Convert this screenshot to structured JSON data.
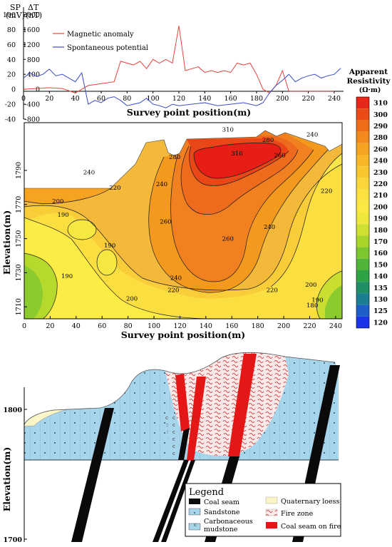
{
  "chart_data": [
    {
      "type": "line",
      "axes": {
        "x": {
          "label": "Survey point position(m)",
          "ticks": [
            0,
            20,
            40,
            60,
            80,
            100,
            120,
            140,
            160,
            180,
            200,
            220,
            240
          ],
          "range": [
            0,
            245
          ]
        },
        "y_left": {
          "unit_label": "SP",
          "unit": "(mV)",
          "ticks": [
            -40,
            -20,
            0,
            20,
            40,
            60,
            80,
            100
          ],
          "range": [
            -40,
            110
          ]
        },
        "y_right": {
          "unit_label": "ΔT",
          "unit": "(nT)",
          "ticks": [
            -800,
            -400,
            0,
            400,
            800,
            1200,
            1600,
            2000
          ],
          "range": [
            -800,
            2200
          ]
        }
      },
      "series": [
        {
          "name": "Magnetic anomaly",
          "axis": "y_right",
          "color": "#e8413c",
          "x": [
            0,
            10,
            20,
            30,
            40,
            50,
            60,
            70,
            75,
            80,
            85,
            90,
            95,
            100,
            105,
            110,
            115,
            120,
            125,
            130,
            135,
            140,
            145,
            150,
            155,
            160,
            165,
            170,
            175,
            180,
            185,
            190,
            195,
            200,
            205,
            210,
            220,
            230,
            240
          ],
          "y": [
            0,
            20,
            40,
            20,
            -100,
            100,
            150,
            200,
            750,
            700,
            650,
            750,
            550,
            800,
            700,
            800,
            700,
            1700,
            500,
            550,
            600,
            450,
            500,
            450,
            500,
            450,
            700,
            650,
            700,
            400,
            0,
            -100,
            100,
            500,
            -50,
            -50,
            -50,
            -50,
            -50
          ]
        },
        {
          "name": "Spontaneous potential",
          "axis": "y_left",
          "color": "#3b4bc8",
          "x": [
            0,
            5,
            10,
            15,
            20,
            25,
            30,
            35,
            40,
            45,
            50,
            55,
            60,
            65,
            70,
            75,
            80,
            85,
            90,
            95,
            100,
            105,
            110,
            115,
            120,
            130,
            140,
            150,
            160,
            170,
            180,
            185,
            190,
            195,
            200,
            205,
            210,
            215,
            220,
            225,
            230,
            235,
            240,
            245
          ],
          "y": [
            15,
            22,
            17,
            20,
            27,
            18,
            20,
            15,
            10,
            22,
            -20,
            -15,
            -18,
            -12,
            -10,
            -15,
            -22,
            -20,
            -18,
            -12,
            -20,
            -22,
            -25,
            -20,
            -22,
            -20,
            -18,
            -22,
            -20,
            -18,
            -22,
            -18,
            -5,
            5,
            12,
            20,
            10,
            15,
            18,
            20,
            15,
            18,
            20,
            28
          ]
        }
      ]
    },
    {
      "type": "heatmap",
      "axes": {
        "x": {
          "label": "Survey point position(m)",
          "ticks": [
            0,
            20,
            40,
            60,
            80,
            100,
            120,
            140,
            160,
            180,
            200,
            220,
            240
          ],
          "range": [
            0,
            245
          ]
        },
        "y": {
          "label": "Elevation(m)",
          "ticks": [
            1710,
            1730,
            1750,
            1770,
            1790
          ],
          "range": [
            1703,
            1818
          ]
        }
      },
      "colorbar": {
        "title_line1": "Apparent",
        "title_line2": "Resistivity",
        "unit": "(Ω·m)",
        "levels": [
          {
            "value": "310",
            "color": "#e8261a"
          },
          {
            "value": "300",
            "color": "#ec4a17"
          },
          {
            "value": "290",
            "color": "#ef6d18"
          },
          {
            "value": "280",
            "color": "#f38a1d"
          },
          {
            "value": "260",
            "color": "#f6a321"
          },
          {
            "value": "240",
            "color": "#f8b628"
          },
          {
            "value": "230",
            "color": "#fac630"
          },
          {
            "value": "220",
            "color": "#fcd53a"
          },
          {
            "value": "210",
            "color": "#fde13f"
          },
          {
            "value": "200",
            "color": "#fbe843"
          },
          {
            "value": "190",
            "color": "#eee73c"
          },
          {
            "value": "180",
            "color": "#cfe032"
          },
          {
            "value": "170",
            "color": "#a9d52b"
          },
          {
            "value": "160",
            "color": "#7cc630"
          },
          {
            "value": "150",
            "color": "#4fb43a"
          },
          {
            "value": "140",
            "color": "#2ea345"
          },
          {
            "value": "135",
            "color": "#1f8f66"
          },
          {
            "value": "130",
            "color": "#1b7f91"
          },
          {
            "value": "125",
            "color": "#1d5ec8"
          },
          {
            "value": "120",
            "color": "#1b34e8"
          }
        ]
      },
      "contour_labels": [
        {
          "x": 157,
          "y": 1814,
          "text": "310"
        },
        {
          "x": 164,
          "y": 1800,
          "text": "310"
        },
        {
          "x": 188,
          "y": 1808,
          "text": "280"
        },
        {
          "x": 197,
          "y": 1799,
          "text": "260"
        },
        {
          "x": 222,
          "y": 1811,
          "text": "240"
        },
        {
          "x": 233,
          "y": 1778,
          "text": "220"
        },
        {
          "x": 116,
          "y": 1798,
          "text": "280"
        },
        {
          "x": 106,
          "y": 1782,
          "text": "240"
        },
        {
          "x": 70,
          "y": 1780,
          "text": "220"
        },
        {
          "x": 50,
          "y": 1789,
          "text": "240"
        },
        {
          "x": 26,
          "y": 1772,
          "text": "200"
        },
        {
          "x": 30,
          "y": 1764,
          "text": "190"
        },
        {
          "x": 66,
          "y": 1746,
          "text": "190"
        },
        {
          "x": 33,
          "y": 1728,
          "text": "190"
        },
        {
          "x": 109,
          "y": 1760,
          "text": "260"
        },
        {
          "x": 157,
          "y": 1750,
          "text": "260"
        },
        {
          "x": 189,
          "y": 1757,
          "text": "240"
        },
        {
          "x": 117,
          "y": 1727,
          "text": "240"
        },
        {
          "x": 115,
          "y": 1720,
          "text": "220"
        },
        {
          "x": 83,
          "y": 1715,
          "text": "200"
        },
        {
          "x": 191,
          "y": 1720,
          "text": "220"
        },
        {
          "x": 221,
          "y": 1723,
          "text": "200"
        },
        {
          "x": 226,
          "y": 1714,
          "text": "190"
        },
        {
          "x": 222,
          "y": 1711,
          "text": "180"
        }
      ]
    },
    {
      "type": "diagram",
      "axes": {
        "y": {
          "label": "Elevation(m)",
          "ticks": [
            1700,
            1800
          ]
        }
      },
      "legend": {
        "title": "Legend",
        "items": [
          {
            "name": "Coal seam",
            "pattern": "black"
          },
          {
            "name": "Sandstone",
            "pattern": "sandstone"
          },
          {
            "name": "Carbonaceous",
            "name_line2": "mudstone",
            "pattern": "mudstone"
          },
          {
            "name": "Quaternary loess",
            "pattern": "loess"
          },
          {
            "name": "Fire zone",
            "pattern": "fire"
          },
          {
            "name": "Coal seam on fire",
            "pattern": "red"
          }
        ]
      }
    }
  ]
}
